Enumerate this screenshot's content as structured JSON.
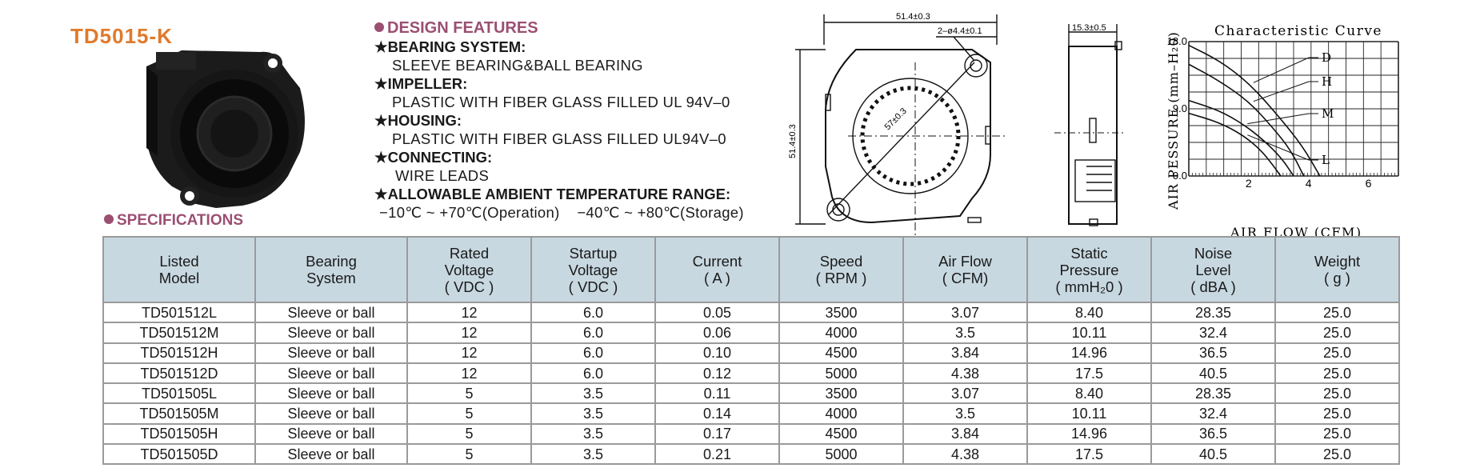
{
  "title": "TD5015-K",
  "design_features": {
    "heading": "DESIGN FEATURES",
    "items": [
      {
        "label": "BEARING SYSTEM:",
        "value": "SLEEVE BEARING&BALL BEARING"
      },
      {
        "label": "IMPELLER:",
        "value": "PLASTIC WITH FIBER GLASS FILLED UL 94V–0"
      },
      {
        "label": "HOUSING:",
        "value": "PLASTIC WITH FIBER GLASS FILLED UL94V–0"
      },
      {
        "label": "CONNECTING:",
        "value": "WIRE LEADS"
      },
      {
        "label": "ALLOWABLE AMBIENT TEMPERATURE RANGE:",
        "value": "−10℃ ~ +70℃(Operation)    −40℃ ~ +80℃(Storage)"
      }
    ]
  },
  "drawing": {
    "width_dim": "51.4±0.3",
    "hole_dim": "2–ø4.4±0.1",
    "height_dim": "51.4±0.3",
    "diameter_dim": "57±0.3",
    "thickness_dim": "15.3±0.5"
  },
  "specs_heading": "SPECIFICATIONS",
  "table": {
    "headers": [
      [
        "Listed",
        "Model"
      ],
      [
        "Bearing",
        "System"
      ],
      [
        "Rated",
        "Voltage",
        "( VDC )"
      ],
      [
        "Startup",
        "Voltage",
        "( VDC )"
      ],
      [
        "Current",
        "( A )"
      ],
      [
        "Speed",
        "( RPM )"
      ],
      [
        "Air Flow",
        "( CFM)"
      ],
      [
        "Static",
        "Pressure",
        "( mmH₂0 )"
      ],
      [
        "Noise",
        "Level",
        "( dBA )"
      ],
      [
        "Weight",
        "( g )"
      ]
    ],
    "rows": [
      [
        "TD501512L",
        "Sleeve or ball",
        "12",
        "6.0",
        "0.05",
        "3500",
        "3.07",
        "8.40",
        "28.35",
        "25.0"
      ],
      [
        "TD501512M",
        "Sleeve or ball",
        "12",
        "6.0",
        "0.06",
        "4000",
        "3.5",
        "10.11",
        "32.4",
        "25.0"
      ],
      [
        "TD501512H",
        "Sleeve or ball",
        "12",
        "6.0",
        "0.10",
        "4500",
        "3.84",
        "14.96",
        "36.5",
        "25.0"
      ],
      [
        "TD501512D",
        "Sleeve or ball",
        "12",
        "6.0",
        "0.12",
        "5000",
        "4.38",
        "17.5",
        "40.5",
        "25.0"
      ],
      [
        "TD501505L",
        "Sleeve or ball",
        "5",
        "3.5",
        "0.11",
        "3500",
        "3.07",
        "8.40",
        "28.35",
        "25.0"
      ],
      [
        "TD501505M",
        "Sleeve or ball",
        "5",
        "3.5",
        "0.14",
        "4000",
        "3.5",
        "10.11",
        "32.4",
        "25.0"
      ],
      [
        "TD501505H",
        "Sleeve or ball",
        "5",
        "3.5",
        "0.17",
        "4500",
        "3.84",
        "14.96",
        "36.5",
        "25.0"
      ],
      [
        "TD501505D",
        "Sleeve or ball",
        "5",
        "3.5",
        "0.21",
        "5000",
        "4.38",
        "17.5",
        "40.5",
        "25.0"
      ]
    ]
  },
  "chart_data": {
    "type": "line",
    "title": "Characteristic Curve",
    "xlabel": "AIR FLOW (CFM)",
    "ylabel": "AIR PESSURE (mm–H₂0)",
    "xlim": [
      0,
      7
    ],
    "ylim": [
      0,
      18
    ],
    "x_ticks": [
      "2",
      "4",
      "6"
    ],
    "y_ticks": [
      "0.0",
      "9.0",
      "18.0"
    ],
    "grid": true,
    "series": [
      {
        "name": "D",
        "points": [
          [
            0,
            17.5
          ],
          [
            1,
            15.5
          ],
          [
            2,
            12.5
          ],
          [
            3,
            8
          ],
          [
            3.8,
            4
          ],
          [
            4.38,
            0
          ]
        ]
      },
      {
        "name": "H",
        "points": [
          [
            0,
            14.96
          ],
          [
            1,
            12.8
          ],
          [
            2,
            10
          ],
          [
            2.8,
            6.5
          ],
          [
            3.4,
            3.5
          ],
          [
            3.84,
            0
          ]
        ]
      },
      {
        "name": "M",
        "points": [
          [
            0,
            10.11
          ],
          [
            1,
            8.8
          ],
          [
            1.8,
            7
          ],
          [
            2.5,
            4.8
          ],
          [
            3.1,
            2.4
          ],
          [
            3.5,
            0
          ]
        ]
      },
      {
        "name": "L",
        "points": [
          [
            0,
            8.4
          ],
          [
            1,
            7.2
          ],
          [
            1.8,
            5.5
          ],
          [
            2.4,
            3.5
          ],
          [
            2.8,
            1.5
          ],
          [
            3.07,
            0
          ]
        ]
      }
    ]
  },
  "colors": {
    "title": "#e07a2b",
    "heading": "#9b4f72",
    "table_header_bg": "#c8d8e1"
  }
}
